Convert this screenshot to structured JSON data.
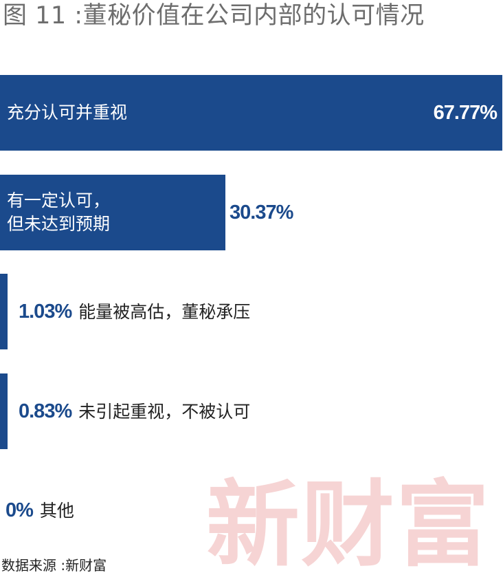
{
  "title": "图 11 :董秘价值在公司内部的认可情况",
  "source": "数据来源 :新财富",
  "watermark": "新财富",
  "colors": {
    "bar": "#1b4a8c",
    "title": "#6d6d6d",
    "watermark": "#e27878"
  },
  "chart_data": {
    "type": "bar",
    "orientation": "horizontal",
    "title": "图 11 :董秘价值在公司内部的认可情况",
    "xlabel": "",
    "ylabel": "",
    "xlim": [
      0,
      67.77
    ],
    "grid": false,
    "categories": [
      "充分认可并重视",
      "有一定认可，\n但未达到预期",
      "能量被高估，董秘承压",
      "未引起重视，不被认可",
      "其他"
    ],
    "values": [
      67.77,
      30.37,
      1.03,
      0.83,
      0
    ],
    "value_labels": [
      "67.77%",
      "30.37%",
      "1.03%",
      "0.83%",
      "0%"
    ]
  }
}
